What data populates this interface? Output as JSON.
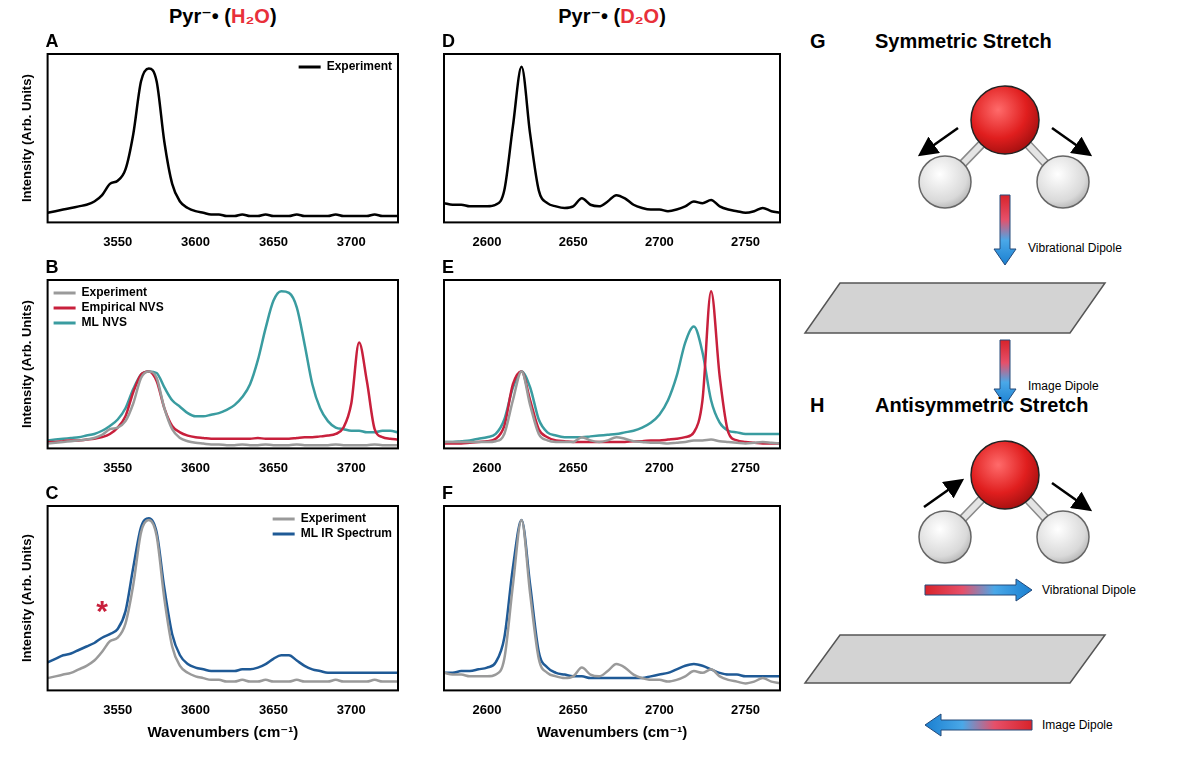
{
  "chart_data": [
    {
      "panel": "A",
      "type": "line",
      "ylabel": "Intensity (Arb. Units)",
      "x": [
        3505,
        3510,
        3515,
        3520,
        3525,
        3530,
        3535,
        3540,
        3545,
        3550,
        3555,
        3560,
        3565,
        3570,
        3575,
        3580,
        3585,
        3590,
        3595,
        3600,
        3605,
        3610,
        3615,
        3620,
        3625,
        3630,
        3635,
        3640,
        3645,
        3650,
        3655,
        3660,
        3665,
        3670,
        3675,
        3680,
        3685,
        3690,
        3695,
        3700,
        3705,
        3710,
        3715,
        3720,
        3725,
        3730
      ],
      "series": [
        {
          "name": "Experiment",
          "color": "#000000",
          "values": [
            0.06,
            0.07,
            0.08,
            0.09,
            0.1,
            0.11,
            0.13,
            0.17,
            0.24,
            0.26,
            0.33,
            0.55,
            0.88,
            0.96,
            0.88,
            0.5,
            0.24,
            0.13,
            0.09,
            0.07,
            0.06,
            0.05,
            0.05,
            0.04,
            0.04,
            0.05,
            0.04,
            0.04,
            0.05,
            0.04,
            0.04,
            0.04,
            0.05,
            0.04,
            0.04,
            0.04,
            0.04,
            0.05,
            0.04,
            0.04,
            0.04,
            0.04,
            0.05,
            0.04,
            0.04,
            0.04
          ]
        }
      ],
      "xlim": [
        3505,
        3730
      ],
      "xticks": [
        3550,
        3600,
        3650,
        3700
      ],
      "ylim": [
        0,
        1.05
      ],
      "grid": false,
      "tick_labels": "x",
      "legend": "upper right"
    },
    {
      "panel": "B",
      "type": "line",
      "ylabel": "Intensity (Arb. Units)",
      "x": [
        3505,
        3510,
        3515,
        3520,
        3525,
        3530,
        3535,
        3540,
        3545,
        3550,
        3555,
        3560,
        3565,
        3570,
        3575,
        3580,
        3585,
        3590,
        3595,
        3600,
        3605,
        3610,
        3615,
        3620,
        3625,
        3630,
        3635,
        3640,
        3645,
        3650,
        3655,
        3660,
        3665,
        3670,
        3675,
        3680,
        3685,
        3690,
        3695,
        3700,
        3705,
        3710,
        3715,
        3720,
        3725,
        3730
      ],
      "series": [
        {
          "name": "Experiment",
          "color": "#9a9a9a",
          "values": [
            0.03,
            0.035,
            0.04,
            0.045,
            0.05,
            0.055,
            0.065,
            0.085,
            0.12,
            0.13,
            0.17,
            0.28,
            0.44,
            0.48,
            0.44,
            0.25,
            0.12,
            0.065,
            0.045,
            0.035,
            0.03,
            0.025,
            0.025,
            0.02,
            0.02,
            0.025,
            0.02,
            0.02,
            0.025,
            0.02,
            0.02,
            0.02,
            0.025,
            0.02,
            0.02,
            0.02,
            0.02,
            0.025,
            0.02,
            0.02,
            0.02,
            0.02,
            0.025,
            0.02,
            0.02,
            0.02
          ]
        },
        {
          "name": "Empirical NVS",
          "color": "#c8203c",
          "values": [
            0.04,
            0.04,
            0.045,
            0.05,
            0.05,
            0.055,
            0.06,
            0.07,
            0.09,
            0.13,
            0.2,
            0.35,
            0.46,
            0.48,
            0.42,
            0.25,
            0.14,
            0.1,
            0.08,
            0.07,
            0.065,
            0.06,
            0.06,
            0.06,
            0.06,
            0.06,
            0.06,
            0.065,
            0.06,
            0.06,
            0.06,
            0.06,
            0.065,
            0.07,
            0.07,
            0.075,
            0.08,
            0.09,
            0.13,
            0.28,
            0.66,
            0.42,
            0.12,
            0.07,
            0.06,
            0.055
          ]
        },
        {
          "name": "ML NVS",
          "color": "#3a9ca0",
          "values": [
            0.05,
            0.055,
            0.06,
            0.065,
            0.07,
            0.08,
            0.09,
            0.11,
            0.14,
            0.18,
            0.25,
            0.37,
            0.46,
            0.48,
            0.47,
            0.38,
            0.3,
            0.26,
            0.22,
            0.2,
            0.2,
            0.21,
            0.22,
            0.24,
            0.27,
            0.32,
            0.4,
            0.55,
            0.75,
            0.92,
            0.98,
            0.97,
            0.88,
            0.65,
            0.4,
            0.25,
            0.17,
            0.13,
            0.12,
            0.11,
            0.11,
            0.1,
            0.1,
            0.11,
            0.11,
            0.1
          ]
        }
      ],
      "xlim": [
        3505,
        3730
      ],
      "xticks": [
        3550,
        3600,
        3650,
        3700
      ],
      "ylim": [
        0,
        1.05
      ],
      "grid": false,
      "tick_labels": "x",
      "legend": "upper left"
    },
    {
      "panel": "C",
      "type": "line",
      "ylabel": "Intensity (Arb. Units)",
      "xlabel": "Wavenumbers (cm⁻¹)",
      "x": [
        3505,
        3510,
        3515,
        3520,
        3525,
        3530,
        3535,
        3540,
        3545,
        3550,
        3555,
        3560,
        3565,
        3570,
        3575,
        3580,
        3585,
        3590,
        3595,
        3600,
        3605,
        3610,
        3615,
        3620,
        3625,
        3630,
        3635,
        3640,
        3645,
        3650,
        3655,
        3660,
        3665,
        3670,
        3675,
        3680,
        3685,
        3690,
        3695,
        3700,
        3705,
        3710,
        3715,
        3720,
        3725,
        3730
      ],
      "series": [
        {
          "name": "Experiment",
          "color": "#9a9a9a",
          "values": [
            0.07,
            0.08,
            0.09,
            0.1,
            0.12,
            0.14,
            0.17,
            0.22,
            0.28,
            0.3,
            0.38,
            0.6,
            0.9,
            0.97,
            0.88,
            0.52,
            0.25,
            0.14,
            0.1,
            0.08,
            0.07,
            0.06,
            0.06,
            0.05,
            0.05,
            0.06,
            0.05,
            0.05,
            0.06,
            0.05,
            0.05,
            0.05,
            0.06,
            0.05,
            0.05,
            0.05,
            0.05,
            0.06,
            0.05,
            0.05,
            0.05,
            0.05,
            0.06,
            0.05,
            0.05,
            0.05
          ]
        },
        {
          "name": "ML IR Spectrum",
          "color": "#1f5a96",
          "values": [
            0.16,
            0.18,
            0.2,
            0.21,
            0.23,
            0.25,
            0.27,
            0.3,
            0.32,
            0.35,
            0.45,
            0.7,
            0.93,
            0.98,
            0.9,
            0.58,
            0.32,
            0.2,
            0.15,
            0.13,
            0.12,
            0.11,
            0.11,
            0.11,
            0.11,
            0.12,
            0.12,
            0.13,
            0.15,
            0.18,
            0.2,
            0.2,
            0.17,
            0.14,
            0.12,
            0.11,
            0.1,
            0.1,
            0.1,
            0.1,
            0.1,
            0.1,
            0.1,
            0.1,
            0.1,
            0.1
          ]
        }
      ],
      "annotations": [
        {
          "text": "*",
          "x": 3540,
          "y": 0.44,
          "color": "#c8203c"
        }
      ],
      "xlim": [
        3505,
        3730
      ],
      "xticks": [
        3550,
        3600,
        3650,
        3700
      ],
      "ylim": [
        0,
        1.05
      ],
      "grid": false,
      "tick_labels": "x",
      "legend": "upper right"
    },
    {
      "panel": "D",
      "type": "line",
      "x": [
        2575,
        2580,
        2585,
        2590,
        2595,
        2600,
        2605,
        2610,
        2615,
        2620,
        2625,
        2630,
        2635,
        2640,
        2645,
        2650,
        2655,
        2660,
        2665,
        2670,
        2675,
        2680,
        2685,
        2690,
        2695,
        2700,
        2705,
        2710,
        2715,
        2720,
        2725,
        2730,
        2735,
        2740,
        2745,
        2750,
        2755,
        2760,
        2765,
        2770
      ],
      "series": [
        {
          "name": "Experiment",
          "color": "#000000",
          "values": [
            0.12,
            0.11,
            0.11,
            0.1,
            0.1,
            0.1,
            0.11,
            0.2,
            0.6,
            0.97,
            0.55,
            0.2,
            0.12,
            0.1,
            0.09,
            0.1,
            0.15,
            0.11,
            0.1,
            0.13,
            0.17,
            0.15,
            0.11,
            0.09,
            0.08,
            0.08,
            0.07,
            0.08,
            0.1,
            0.13,
            0.12,
            0.14,
            0.1,
            0.08,
            0.07,
            0.06,
            0.07,
            0.09,
            0.07,
            0.06
          ]
        }
      ],
      "xlim": [
        2575,
        2770
      ],
      "xticks": [
        2600,
        2650,
        2700,
        2750
      ],
      "ylim": [
        0,
        1.05
      ],
      "grid": false,
      "tick_labels": "x"
    },
    {
      "panel": "E",
      "type": "line",
      "x": [
        2575,
        2580,
        2585,
        2590,
        2595,
        2600,
        2605,
        2610,
        2615,
        2620,
        2625,
        2630,
        2635,
        2640,
        2645,
        2650,
        2655,
        2660,
        2665,
        2670,
        2675,
        2680,
        2685,
        2690,
        2695,
        2700,
        2705,
        2710,
        2715,
        2720,
        2725,
        2730,
        2735,
        2740,
        2745,
        2750,
        2755,
        2760,
        2765,
        2770
      ],
      "series": [
        {
          "name": "Experiment",
          "color": "#9a9a9a",
          "values": [
            0.04,
            0.04,
            0.04,
            0.04,
            0.04,
            0.04,
            0.045,
            0.09,
            0.3,
            0.48,
            0.27,
            0.09,
            0.05,
            0.04,
            0.04,
            0.04,
            0.07,
            0.05,
            0.04,
            0.05,
            0.07,
            0.06,
            0.045,
            0.04,
            0.035,
            0.035,
            0.03,
            0.035,
            0.04,
            0.05,
            0.05,
            0.055,
            0.045,
            0.04,
            0.035,
            0.03,
            0.035,
            0.04,
            0.035,
            0.03
          ]
        },
        {
          "name": "Empirical NVS",
          "color": "#c8203c",
          "values": [
            0.03,
            0.03,
            0.03,
            0.035,
            0.04,
            0.045,
            0.06,
            0.14,
            0.4,
            0.48,
            0.3,
            0.12,
            0.07,
            0.05,
            0.045,
            0.04,
            0.04,
            0.04,
            0.04,
            0.04,
            0.04,
            0.04,
            0.045,
            0.045,
            0.05,
            0.05,
            0.055,
            0.06,
            0.07,
            0.1,
            0.3,
            0.98,
            0.45,
            0.1,
            0.05,
            0.04,
            0.035,
            0.03,
            0.03,
            0.03
          ]
        },
        {
          "name": "ML NVS",
          "color": "#3a9ca0",
          "values": [
            0.04,
            0.04,
            0.045,
            0.05,
            0.06,
            0.07,
            0.09,
            0.18,
            0.38,
            0.48,
            0.38,
            0.18,
            0.1,
            0.08,
            0.07,
            0.07,
            0.07,
            0.075,
            0.08,
            0.085,
            0.09,
            0.1,
            0.11,
            0.13,
            0.16,
            0.21,
            0.3,
            0.45,
            0.66,
            0.76,
            0.6,
            0.3,
            0.16,
            0.11,
            0.1,
            0.09,
            0.09,
            0.09,
            0.09,
            0.09
          ]
        }
      ],
      "xlim": [
        2575,
        2770
      ],
      "xticks": [
        2600,
        2650,
        2700,
        2750
      ],
      "ylim": [
        0,
        1.05
      ],
      "grid": false,
      "tick_labels": "x"
    },
    {
      "panel": "F",
      "type": "line",
      "xlabel": "Wavenumbers (cm⁻¹)",
      "x": [
        2575,
        2580,
        2585,
        2590,
        2595,
        2600,
        2605,
        2610,
        2615,
        2620,
        2625,
        2630,
        2635,
        2640,
        2645,
        2650,
        2655,
        2660,
        2665,
        2670,
        2675,
        2680,
        2685,
        2690,
        2695,
        2700,
        2705,
        2710,
        2715,
        2720,
        2725,
        2730,
        2735,
        2740,
        2745,
        2750,
        2755,
        2760,
        2765,
        2770
      ],
      "series": [
        {
          "name": "Experiment",
          "color": "#9a9a9a",
          "values": [
            0.1,
            0.09,
            0.09,
            0.08,
            0.08,
            0.08,
            0.09,
            0.18,
            0.6,
            0.97,
            0.55,
            0.18,
            0.1,
            0.08,
            0.07,
            0.08,
            0.13,
            0.09,
            0.08,
            0.11,
            0.15,
            0.13,
            0.09,
            0.07,
            0.06,
            0.06,
            0.05,
            0.06,
            0.08,
            0.11,
            0.1,
            0.12,
            0.08,
            0.06,
            0.05,
            0.04,
            0.05,
            0.07,
            0.05,
            0.04
          ]
        },
        {
          "name": "ML IR Spectrum",
          "color": "#1f5a96",
          "values": [
            0.1,
            0.1,
            0.11,
            0.11,
            0.12,
            0.13,
            0.16,
            0.3,
            0.7,
            0.97,
            0.6,
            0.22,
            0.13,
            0.1,
            0.09,
            0.08,
            0.08,
            0.07,
            0.07,
            0.07,
            0.07,
            0.07,
            0.07,
            0.07,
            0.08,
            0.09,
            0.1,
            0.12,
            0.14,
            0.15,
            0.14,
            0.12,
            0.1,
            0.09,
            0.09,
            0.08,
            0.08,
            0.08,
            0.08,
            0.08
          ]
        }
      ],
      "xlim": [
        2575,
        2770
      ],
      "xticks": [
        2600,
        2650,
        2700,
        2750
      ],
      "ylim": [
        0,
        1.05
      ],
      "grid": false,
      "tick_labels": "x"
    }
  ],
  "column_titles": [
    {
      "before": "Pyr⁻• (",
      "solvent": "H₂O",
      "after": ")",
      "color": "#e8303a"
    },
    {
      "before": "Pyr⁻• (",
      "solvent": "D₂O",
      "after": ")",
      "color": "#e8303a"
    }
  ],
  "diagrams": [
    {
      "panel": "G",
      "title": "Symmetric Stretch",
      "dipole_labels": [
        "Vibrational Dipole",
        "Image Dipole"
      ]
    },
    {
      "panel": "H",
      "title": "Antisymmetric Stretch",
      "dipole_labels": [
        "Vibrational Dipole",
        "Image Dipole"
      ]
    }
  ]
}
